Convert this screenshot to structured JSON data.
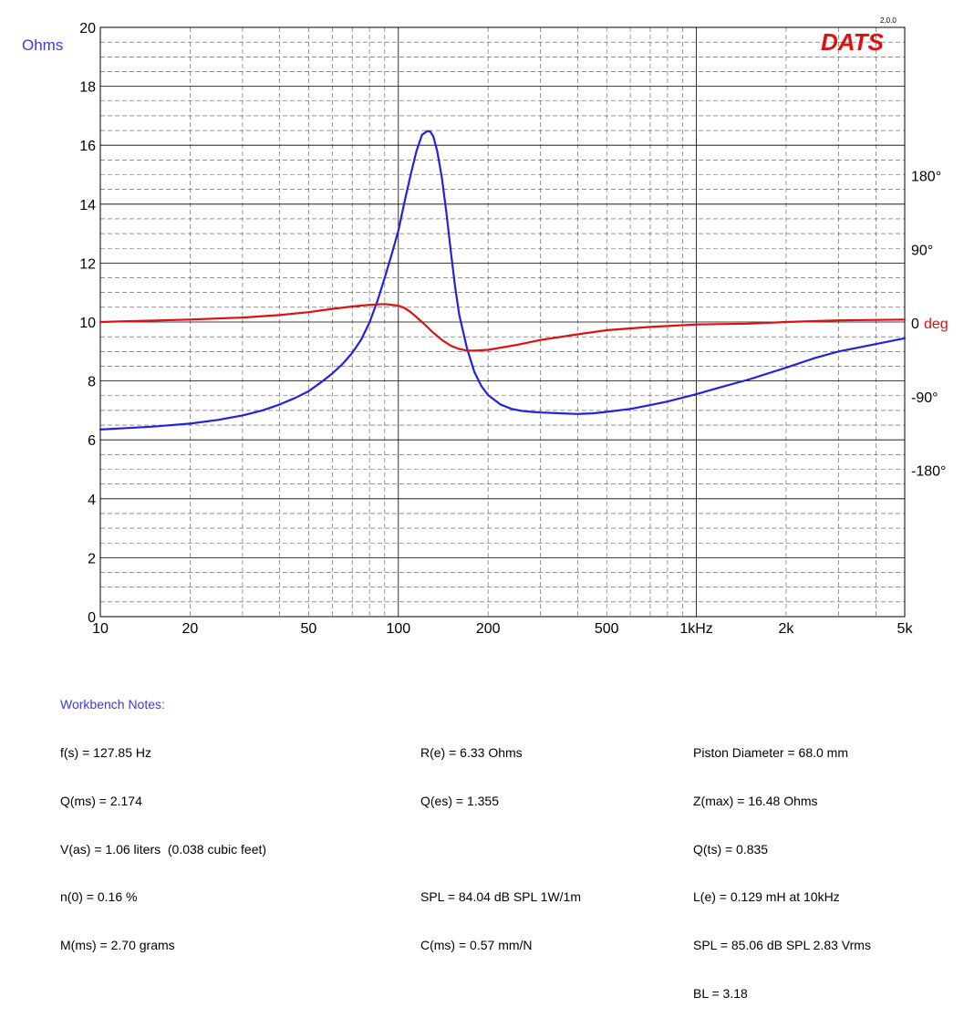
{
  "chart_data": {
    "type": "line",
    "x_scale": "log",
    "xlim": [
      10,
      5000
    ],
    "x_ticks": [
      {
        "value": 10,
        "label": "10"
      },
      {
        "value": 20,
        "label": "20"
      },
      {
        "value": 50,
        "label": "50"
      },
      {
        "value": 100,
        "label": "100"
      },
      {
        "value": 200,
        "label": "200"
      },
      {
        "value": 500,
        "label": "500"
      },
      {
        "value": 1000,
        "label": "1kHz"
      },
      {
        "value": 2000,
        "label": "2k"
      },
      {
        "value": 5000,
        "label": "5k"
      }
    ],
    "ylim": [
      0,
      20
    ],
    "y_ticks": [
      0,
      2,
      4,
      6,
      8,
      10,
      12,
      14,
      16,
      18,
      20
    ],
    "ylabel": "Ohms",
    "y2lim": [
      -360,
      360
    ],
    "y2_ticks": [
      {
        "value": 180,
        "label": "180°"
      },
      {
        "value": 90,
        "label": "90°"
      },
      {
        "value": 0,
        "label": "0"
      },
      {
        "value": -90,
        "label": "-90°"
      },
      {
        "value": -180,
        "label": "-180°"
      }
    ],
    "y2label": "deg",
    "grid": true,
    "logo": "DATS",
    "logo_version": "2.0.0",
    "colors": {
      "impedance": "#2222dd",
      "phase": "#dd1111",
      "ylabel": "#3b3bd6",
      "y2label": "#dd1111",
      "logo": "#dd1111"
    },
    "series": [
      {
        "axis": "left",
        "x": [
          10,
          15,
          20,
          25,
          30,
          35,
          40,
          45,
          50,
          55,
          60,
          65,
          70,
          75,
          80,
          85,
          90,
          95,
          100,
          105,
          110,
          115,
          120,
          125,
          128,
          131,
          135,
          140,
          145,
          150,
          155,
          160,
          170,
          180,
          190,
          200,
          220,
          240,
          260,
          280,
          300,
          350,
          400,
          450,
          500,
          600,
          700,
          800,
          1000,
          1200,
          1500,
          2000,
          2500,
          3000,
          4000,
          5000
        ],
        "y": [
          6.35,
          6.45,
          6.55,
          6.68,
          6.83,
          7.0,
          7.2,
          7.42,
          7.65,
          7.95,
          8.25,
          8.58,
          8.95,
          9.4,
          9.98,
          10.7,
          11.5,
          12.3,
          13.1,
          14.1,
          15.0,
          15.8,
          16.35,
          16.48,
          16.46,
          16.3,
          15.8,
          14.9,
          13.7,
          12.4,
          11.2,
          10.25,
          9.1,
          8.3,
          7.82,
          7.52,
          7.2,
          7.05,
          6.98,
          6.95,
          6.93,
          6.9,
          6.88,
          6.9,
          6.95,
          7.05,
          7.18,
          7.3,
          7.55,
          7.78,
          8.05,
          8.45,
          8.78,
          9.0,
          9.25,
          9.45
        ]
      },
      {
        "axis": "right",
        "x": [
          10,
          20,
          30,
          40,
          50,
          60,
          70,
          80,
          90,
          100,
          105,
          110,
          115,
          120,
          125,
          130,
          135,
          140,
          150,
          160,
          170,
          180,
          200,
          250,
          300,
          400,
          500,
          700,
          1000,
          1500,
          2000,
          3000,
          5000
        ],
        "y": [
          0,
          3,
          5.5,
          8.5,
          12,
          16,
          19,
          21,
          22,
          20,
          17,
          12,
          6,
          0,
          -6,
          -12,
          -17,
          -22,
          -29,
          -33,
          -35,
          -35,
          -34,
          -28,
          -22,
          -15,
          -10,
          -6,
          -3,
          -2,
          0,
          2,
          3
        ]
      }
    ]
  },
  "notes": {
    "title": "Workbench Notes:",
    "col1": [
      "f(s) = 127.85 Hz",
      "Q(ms) = 2.174",
      "V(as) = 1.06 liters  (0.038 cubic feet)",
      "n(0) = 0.16 %",
      "M(ms) = 2.70 grams"
    ],
    "col2": [
      "R(e) = 6.33 Ohms",
      "Q(es) = 1.355",
      "",
      "SPL = 84.04 dB SPL 1W/1m",
      "C(ms) = 0.57 mm/N"
    ],
    "col3": [
      "Piston Diameter = 68.0 mm",
      "Z(max) = 16.48 Ohms",
      "Q(ts) = 0.835",
      "L(e) = 0.129 mH at 10kHz",
      "SPL = 85.06 dB SPL 2.83 Vrms",
      "BL = 3.18"
    ]
  }
}
